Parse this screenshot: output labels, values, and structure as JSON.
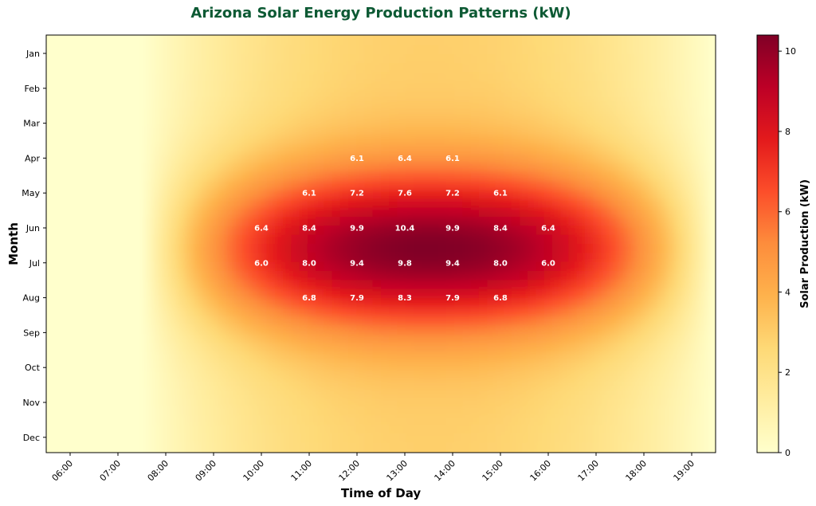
{
  "chart_data": {
    "type": "heatmap",
    "title": "Arizona Solar Energy Production Patterns (kW)",
    "xlabel": "Time of Day",
    "ylabel": "Month",
    "x_ticks": [
      "06:00",
      "07:00",
      "08:00",
      "09:00",
      "10:00",
      "11:00",
      "12:00",
      "13:00",
      "14:00",
      "15:00",
      "16:00",
      "17:00",
      "18:00",
      "19:00"
    ],
    "y_ticks": [
      "Jan",
      "Feb",
      "Mar",
      "Apr",
      "May",
      "Jun",
      "Jul",
      "Aug",
      "Sep",
      "Oct",
      "Nov",
      "Dec"
    ],
    "colorbar": {
      "label": "Solar Production (kW)",
      "ticks": [
        0,
        2,
        4,
        6,
        8,
        10
      ],
      "range": [
        0,
        10.4
      ],
      "colormap": "YlOrRd"
    },
    "annotations": [
      {
        "month": "Apr",
        "time": "12:00",
        "value": "6.1"
      },
      {
        "month": "Apr",
        "time": "13:00",
        "value": "6.4"
      },
      {
        "month": "Apr",
        "time": "14:00",
        "value": "6.1"
      },
      {
        "month": "May",
        "time": "11:00",
        "value": "6.1"
      },
      {
        "month": "May",
        "time": "12:00",
        "value": "7.2"
      },
      {
        "month": "May",
        "time": "13:00",
        "value": "7.6"
      },
      {
        "month": "May",
        "time": "14:00",
        "value": "7.2"
      },
      {
        "month": "May",
        "time": "15:00",
        "value": "6.1"
      },
      {
        "month": "Jun",
        "time": "10:00",
        "value": "6.4"
      },
      {
        "month": "Jun",
        "time": "11:00",
        "value": "8.4"
      },
      {
        "month": "Jun",
        "time": "12:00",
        "value": "9.9"
      },
      {
        "month": "Jun",
        "time": "13:00",
        "value": "10.4"
      },
      {
        "month": "Jun",
        "time": "14:00",
        "value": "9.9"
      },
      {
        "month": "Jun",
        "time": "15:00",
        "value": "8.4"
      },
      {
        "month": "Jun",
        "time": "16:00",
        "value": "6.4"
      },
      {
        "month": "Jul",
        "time": "10:00",
        "value": "6.0"
      },
      {
        "month": "Jul",
        "time": "11:00",
        "value": "8.0"
      },
      {
        "month": "Jul",
        "time": "12:00",
        "value": "9.4"
      },
      {
        "month": "Jul",
        "time": "13:00",
        "value": "9.8"
      },
      {
        "month": "Jul",
        "time": "14:00",
        "value": "9.4"
      },
      {
        "month": "Jul",
        "time": "15:00",
        "value": "8.0"
      },
      {
        "month": "Jul",
        "time": "16:00",
        "value": "6.0"
      },
      {
        "month": "Aug",
        "time": "11:00",
        "value": "6.8"
      },
      {
        "month": "Aug",
        "time": "12:00",
        "value": "7.9"
      },
      {
        "month": "Aug",
        "time": "13:00",
        "value": "8.3"
      },
      {
        "month": "Aug",
        "time": "14:00",
        "value": "7.9"
      },
      {
        "month": "Aug",
        "time": "15:00",
        "value": "6.8"
      }
    ]
  },
  "colors": {
    "title": "#0d5a34",
    "colormap_stops": [
      "#ffffcc",
      "#ffeda0",
      "#fed976",
      "#feb24c",
      "#fd8d3c",
      "#fc4e2a",
      "#e31a1c",
      "#bd0026",
      "#800026"
    ]
  }
}
